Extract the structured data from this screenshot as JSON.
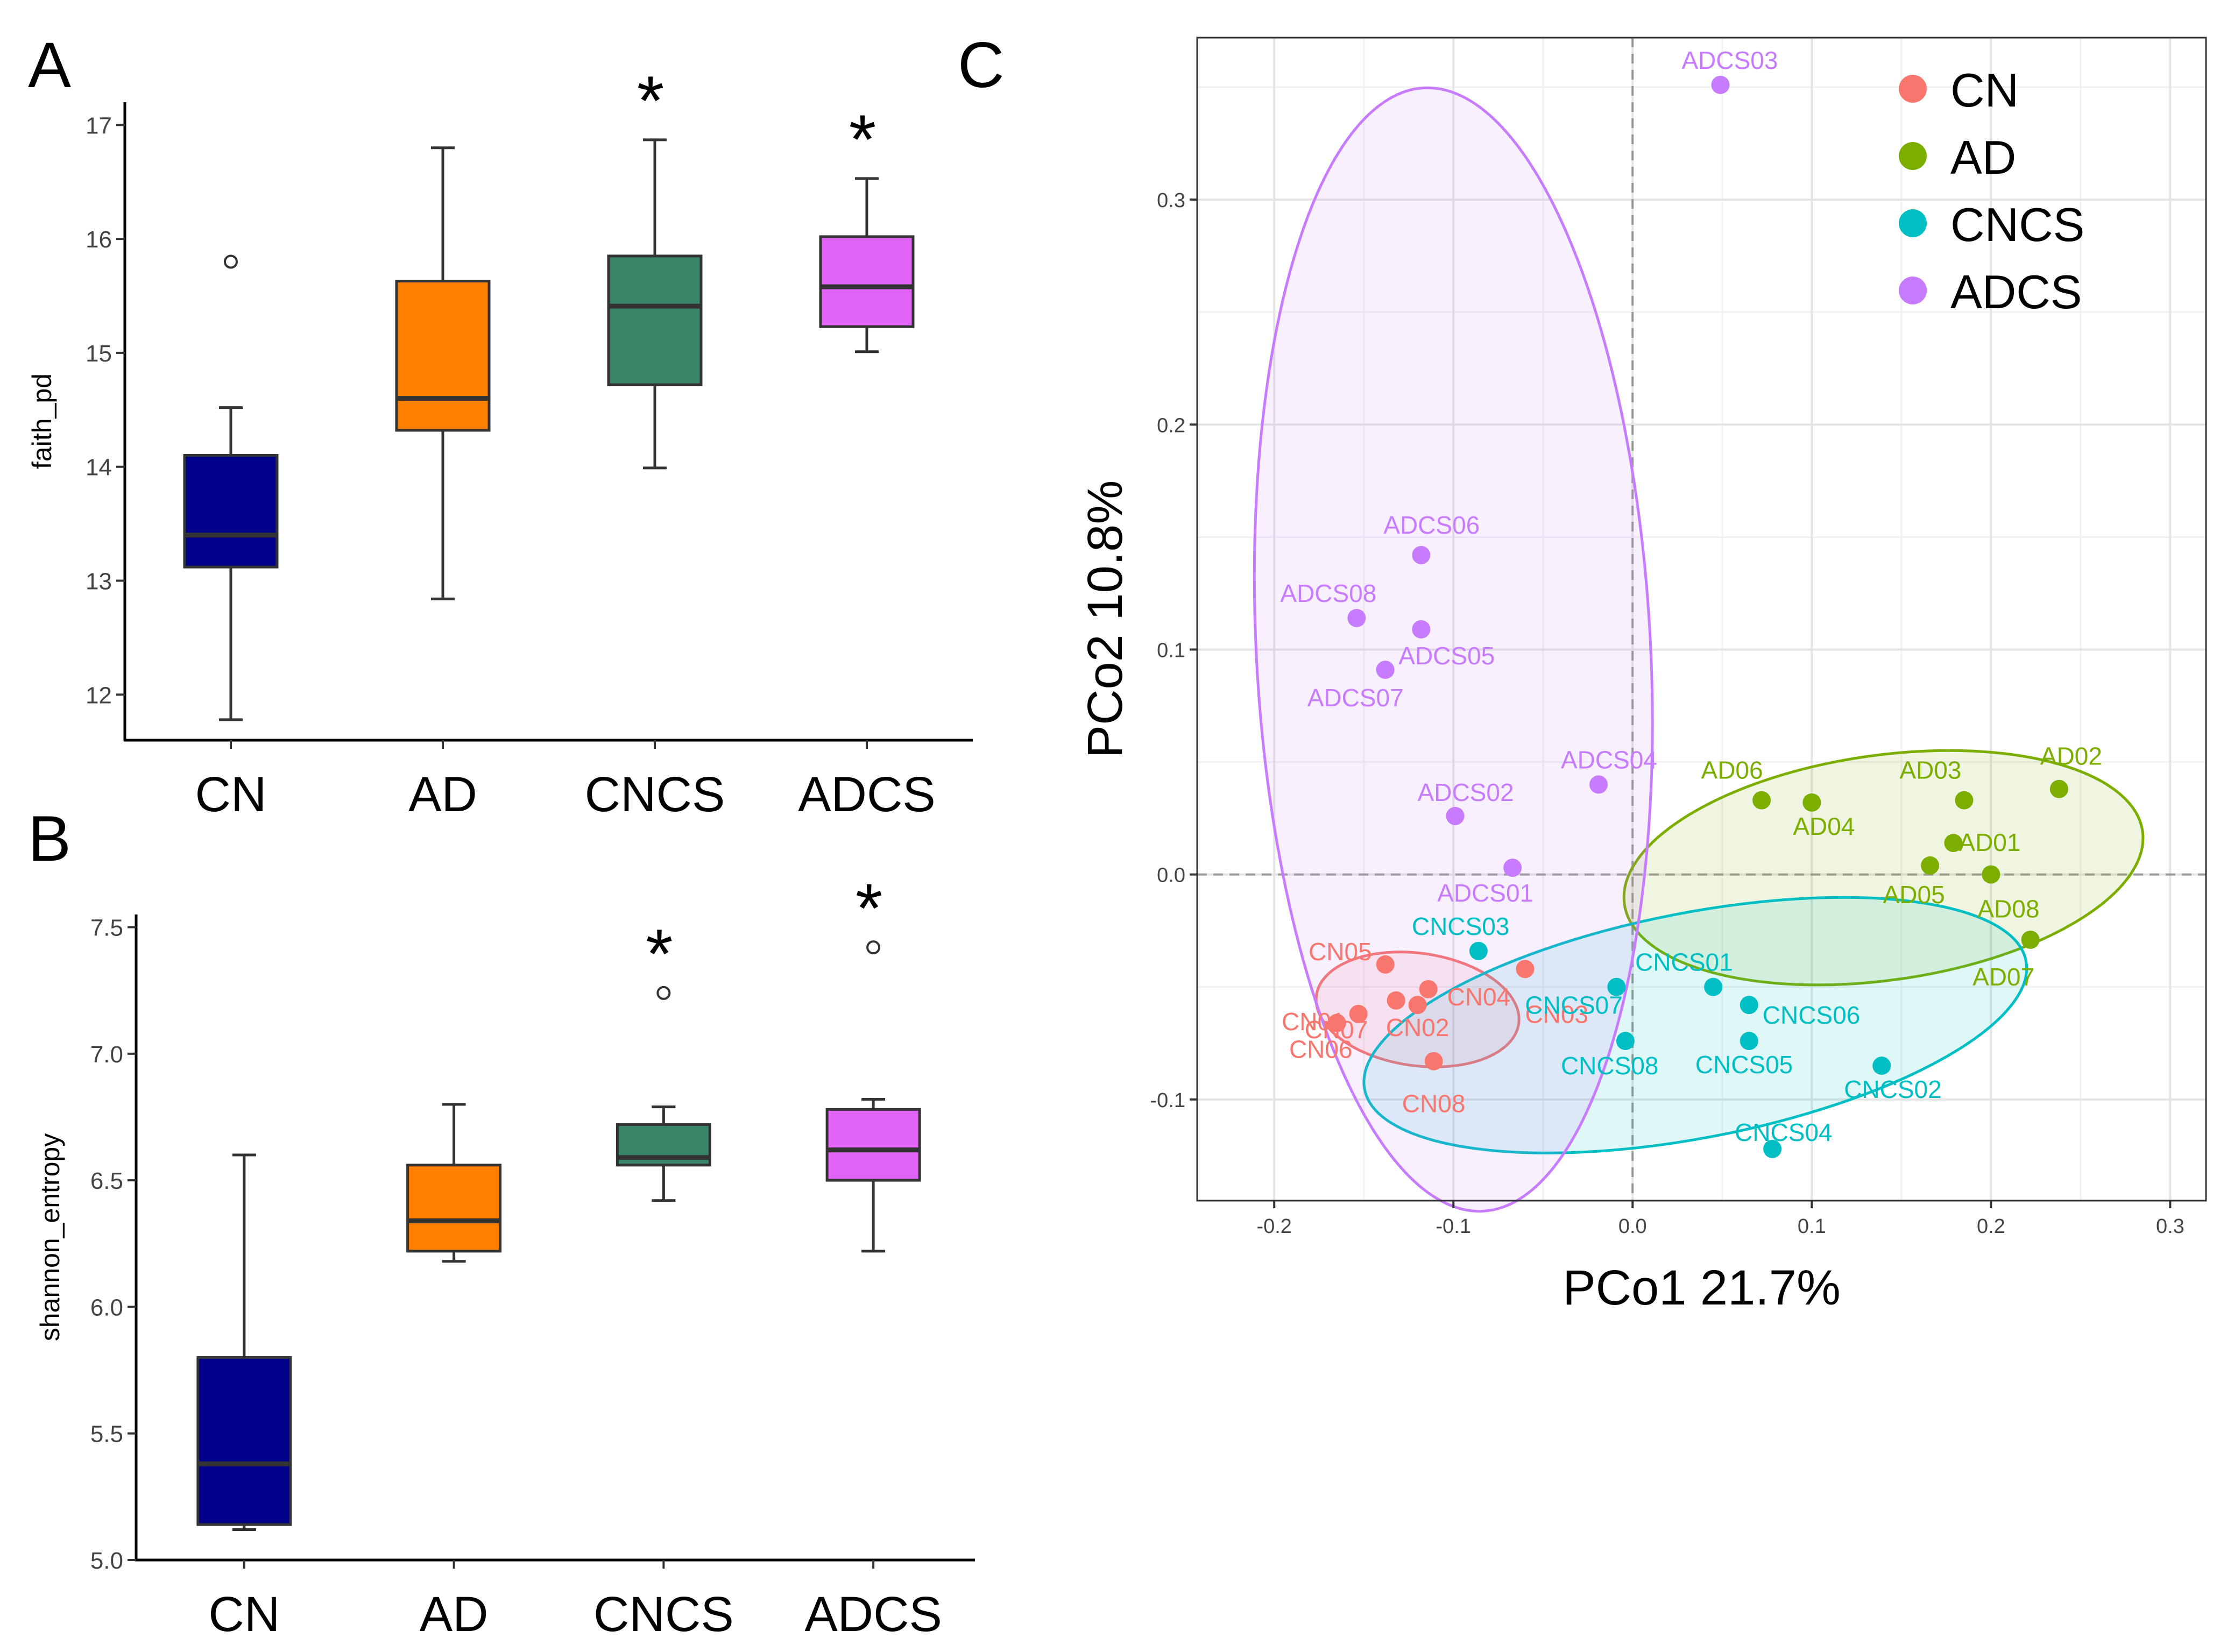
{
  "chart_data": [
    {
      "panel": "A",
      "type": "boxplot",
      "ylabel": "faith_pd",
      "ylim": [
        11.6,
        17.2
      ],
      "yticks": [
        12,
        13,
        14,
        15,
        16,
        17
      ],
      "categories": [
        "CN",
        "AD",
        "CNCS",
        "ADCS"
      ],
      "colors": [
        "#00008B",
        "#FF7F00",
        "#3A8468",
        "#E063F5"
      ],
      "boxes": [
        {
          "category": "CN",
          "whisker_low": 11.78,
          "q1": 13.12,
          "median": 13.4,
          "q3": 14.1,
          "whisker_high": 14.52,
          "outliers": [
            15.8
          ],
          "signif": ""
        },
        {
          "category": "AD",
          "whisker_low": 12.84,
          "q1": 14.32,
          "median": 14.6,
          "q3": 15.63,
          "whisker_high": 16.8,
          "outliers": [],
          "signif": ""
        },
        {
          "category": "CNCS",
          "whisker_low": 13.99,
          "q1": 14.72,
          "median": 15.41,
          "q3": 15.85,
          "whisker_high": 16.87,
          "outliers": [],
          "signif": "*"
        },
        {
          "category": "ADCS",
          "whisker_low": 15.01,
          "q1": 15.23,
          "median": 15.58,
          "q3": 16.02,
          "whisker_high": 16.53,
          "outliers": [],
          "signif": "*"
        }
      ]
    },
    {
      "panel": "B",
      "type": "boxplot",
      "ylabel": "shannon_entropy",
      "ylim": [
        5.0,
        7.55
      ],
      "yticks": [
        5.0,
        5.5,
        6.0,
        6.5,
        7.0,
        7.5
      ],
      "yticklabels": [
        "5.0",
        "5.5",
        "6.0",
        "6.5",
        "7.0",
        "7.5"
      ],
      "categories": [
        "CN",
        "AD",
        "CNCS",
        "ADCS"
      ],
      "colors": [
        "#00008B",
        "#FF7F00",
        "#3A8468",
        "#E063F5"
      ],
      "boxes": [
        {
          "category": "CN",
          "whisker_low": 5.12,
          "q1": 5.14,
          "median": 5.38,
          "q3": 5.8,
          "whisker_high": 6.6,
          "outliers": [],
          "signif": ""
        },
        {
          "category": "AD",
          "whisker_low": 6.18,
          "q1": 6.22,
          "median": 6.34,
          "q3": 6.56,
          "whisker_high": 6.8,
          "outliers": [],
          "signif": ""
        },
        {
          "category": "CNCS",
          "whisker_low": 6.42,
          "q1": 6.56,
          "median": 6.59,
          "q3": 6.72,
          "whisker_high": 6.79,
          "outliers": [
            7.24
          ],
          "signif": "*"
        },
        {
          "category": "ADCS",
          "whisker_low": 6.22,
          "q1": 6.5,
          "median": 6.62,
          "q3": 6.78,
          "whisker_high": 6.82,
          "outliers": [
            7.42
          ],
          "signif": "*"
        }
      ]
    },
    {
      "panel": "C",
      "type": "scatter",
      "xlabel": "PCo1 21.7%",
      "ylabel": "PCo2 10.8%",
      "xlim": [
        -0.243,
        0.32
      ],
      "ylim": [
        -0.145,
        0.372
      ],
      "xticks": [
        -0.2,
        -0.1,
        0.0,
        0.1,
        0.2,
        0.3
      ],
      "xticklabels": [
        "-0.2",
        "-0.1",
        "0.0",
        "0.1",
        "0.2",
        "0.3"
      ],
      "yticks": [
        -0.1,
        0.0,
        0.1,
        0.2,
        0.3
      ],
      "yticklabels": [
        "-0.1",
        "0.0",
        "0.1",
        "0.2",
        "0.3"
      ],
      "legend_position": "top-right",
      "series": [
        {
          "name": "CN",
          "color": "#F8766D",
          "ellipse": {
            "cx": -0.12,
            "cy": -0.06,
            "rx": 0.057,
            "ry": 0.025,
            "angle": 8
          },
          "points": [
            {
              "label": "CN01",
              "x": -0.132,
              "y": -0.056
            },
            {
              "label": "CN02",
              "x": -0.12,
              "y": -0.058
            },
            {
              "label": "CN03",
              "x": -0.06,
              "y": -0.042
            },
            {
              "label": "CN04",
              "x": -0.114,
              "y": -0.051
            },
            {
              "label": "CN05",
              "x": -0.138,
              "y": -0.04
            },
            {
              "label": "CN06",
              "x": -0.165,
              "y": -0.066
            },
            {
              "label": "CN07",
              "x": -0.153,
              "y": -0.062
            },
            {
              "label": "CN08",
              "x": -0.111,
              "y": -0.083
            }
          ]
        },
        {
          "name": "AD",
          "color": "#7CAE00",
          "ellipse": {
            "cx": 0.14,
            "cy": 0.003,
            "rx": 0.146,
            "ry": 0.05,
            "angle": -8
          },
          "points": [
            {
              "label": "AD01",
              "x": 0.179,
              "y": 0.014
            },
            {
              "label": "AD02",
              "x": 0.238,
              "y": 0.038
            },
            {
              "label": "AD03",
              "x": 0.185,
              "y": 0.033
            },
            {
              "label": "AD04",
              "x": 0.1,
              "y": 0.032
            },
            {
              "label": "AD05",
              "x": 0.166,
              "y": 0.004
            },
            {
              "label": "AD06",
              "x": 0.072,
              "y": 0.033
            },
            {
              "label": "AD07",
              "x": 0.222,
              "y": -0.029
            },
            {
              "label": "AD08",
              "x": 0.2,
              "y": 0.0
            }
          ]
        },
        {
          "name": "CNCS",
          "color": "#00BFC4",
          "ellipse": {
            "cx": 0.035,
            "cy": -0.067,
            "rx": 0.188,
            "ry": 0.05,
            "angle": -11
          },
          "points": [
            {
              "label": "CNCS01",
              "x": 0.045,
              "y": -0.05
            },
            {
              "label": "CNCS02",
              "x": 0.139,
              "y": -0.085
            },
            {
              "label": "CNCS03",
              "x": -0.086,
              "y": -0.034
            },
            {
              "label": "CNCS04",
              "x": 0.078,
              "y": -0.122
            },
            {
              "label": "CNCS05",
              "x": 0.065,
              "y": -0.074
            },
            {
              "label": "CNCS06",
              "x": 0.065,
              "y": -0.058
            },
            {
              "label": "CNCS07",
              "x": -0.009,
              "y": -0.05
            },
            {
              "label": "CNCS08",
              "x": -0.004,
              "y": -0.074
            }
          ]
        },
        {
          "name": "ADCS",
          "color": "#C77CFF",
          "ellipse": {
            "cx": -0.1,
            "cy": 0.1,
            "rx": 0.11,
            "ry": 0.25,
            "angle": -3
          },
          "points": [
            {
              "label": "ADCS01",
              "x": -0.067,
              "y": 0.003
            },
            {
              "label": "ADCS02",
              "x": -0.099,
              "y": 0.026
            },
            {
              "label": "ADCS03",
              "x": 0.049,
              "y": 0.351
            },
            {
              "label": "ADCS04",
              "x": -0.019,
              "y": 0.04
            },
            {
              "label": "ADCS05",
              "x": -0.118,
              "y": 0.109
            },
            {
              "label": "ADCS06",
              "x": -0.118,
              "y": 0.142
            },
            {
              "label": "ADCS07",
              "x": -0.138,
              "y": 0.091
            },
            {
              "label": "ADCS08",
              "x": -0.154,
              "y": 0.114
            }
          ]
        }
      ]
    }
  ]
}
